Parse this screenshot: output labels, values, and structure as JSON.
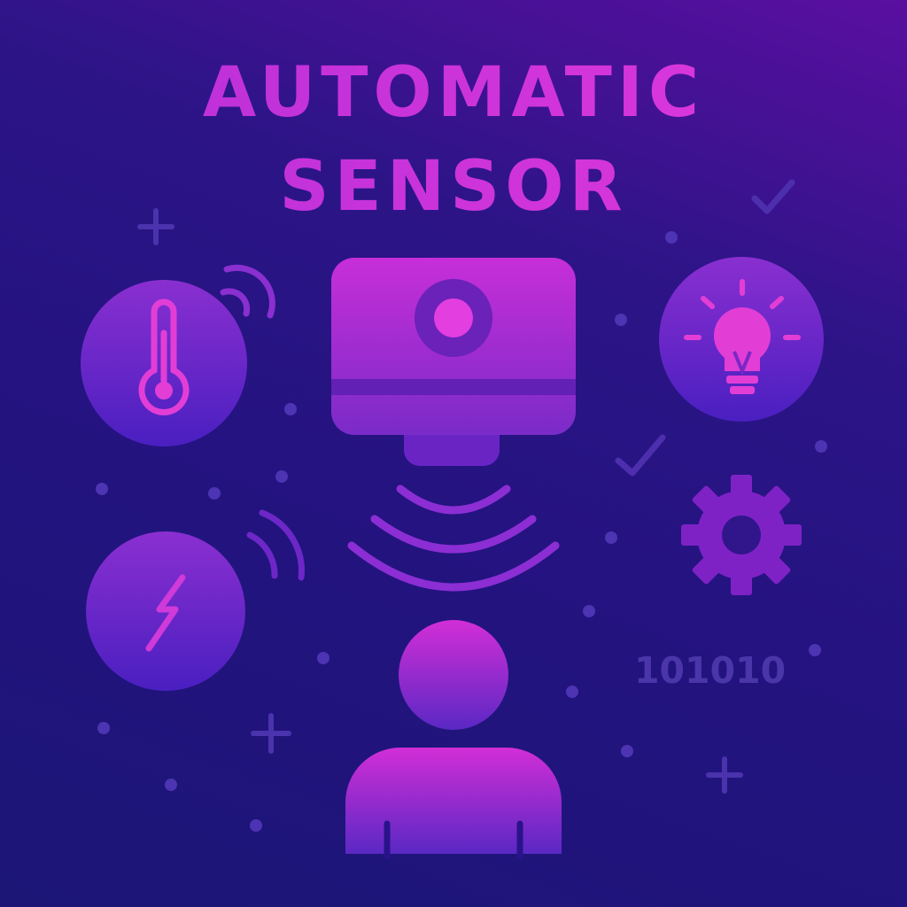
{
  "title": {
    "line1": "AUTOMATIC",
    "line2": "SENSOR"
  },
  "binary_text": "101010",
  "icons": [
    "thermometer-icon",
    "lightbulb-icon",
    "lightning-bolt-icon",
    "gear-icon",
    "motion-sensor-icon",
    "person-icon",
    "wifi-signal-icon",
    "checkmark-icon",
    "plus-icon"
  ],
  "colors": {
    "background_top": "#5a0fa0",
    "background_bottom": "#1c1677",
    "accent_pink": "#d23ee0",
    "accent_purple": "#7e22c6",
    "muted_purple": "#4a36a8"
  }
}
